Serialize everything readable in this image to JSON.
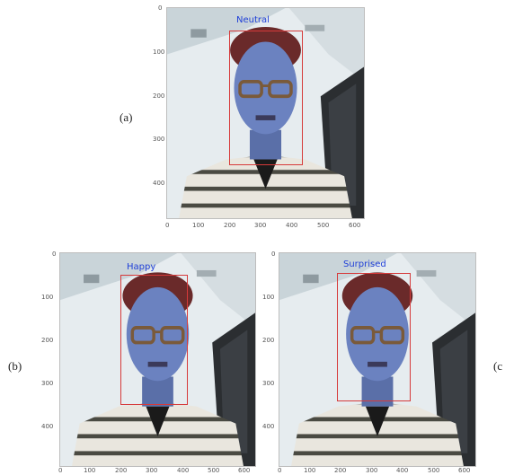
{
  "panels": [
    {
      "label": "(a)",
      "emotion": "Neutral",
      "x_ticks": [
        "0",
        "100",
        "200",
        "300",
        "400",
        "500",
        "600"
      ],
      "y_ticks": [
        "0",
        "100",
        "200",
        "300",
        "400"
      ]
    },
    {
      "label": "(b)",
      "emotion": "Happy",
      "x_ticks": [
        "0",
        "100",
        "200",
        "300",
        "400",
        "500",
        "600"
      ],
      "y_ticks": [
        "0",
        "100",
        "200",
        "300",
        "400"
      ]
    },
    {
      "label": "(c",
      "emotion": "Surprised",
      "x_ticks": [
        "0",
        "100",
        "200",
        "300",
        "400",
        "500",
        "600"
      ],
      "y_ticks": [
        "0",
        "100",
        "200",
        "300",
        "400"
      ]
    }
  ],
  "colors": {
    "box": "#d63a3a",
    "emotion_text": "#1f3fd8"
  }
}
